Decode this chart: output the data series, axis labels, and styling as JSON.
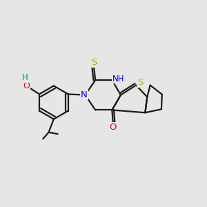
{
  "background_color": "#e6e6e6",
  "atom_colors": {
    "C": "#1a1a1a",
    "N": "#0000ee",
    "O": "#ee0000",
    "S": "#bbaa00",
    "H": "#008888"
  },
  "bond_color": "#1a1a1a",
  "bond_width": 1.6,
  "figsize": [
    3.0,
    3.0
  ],
  "dpi": 100
}
